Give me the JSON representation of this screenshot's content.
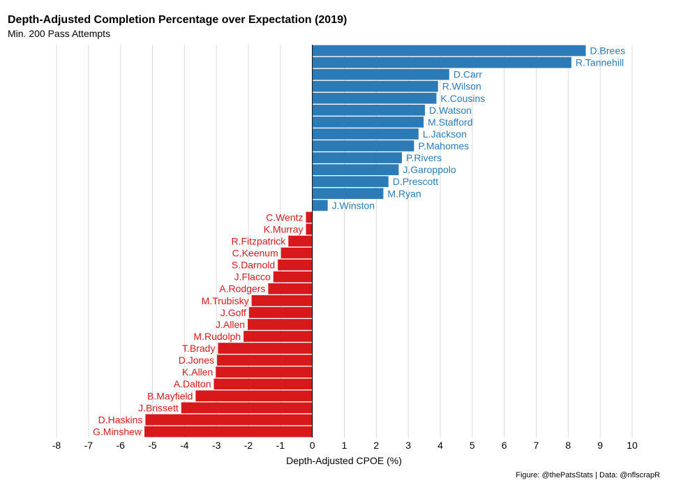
{
  "chart_data": {
    "type": "bar",
    "orientation": "horizontal",
    "title": "Depth-Adjusted Completion Percentage over Expectation (2019)",
    "subtitle": "Min. 200 Pass Attempts",
    "xlabel": "Depth-Adjusted CPOE (%)",
    "caption": "Figure: @thePatsStats | Data: @nflscrapR",
    "xlim": [
      -8,
      10
    ],
    "xticks": [
      "-8",
      "-7",
      "-6",
      "-5",
      "-4",
      "-3",
      "-2",
      "-1",
      "0",
      "1",
      "2",
      "3",
      "4",
      "5",
      "6",
      "7",
      "8",
      "9",
      "10"
    ],
    "grid": true,
    "colors": {
      "positive": "#2c7bb6",
      "negative": "#d7191c"
    },
    "categories": [
      "D.Brees",
      "R.Tannehill",
      "D.Carr",
      "R.Wilson",
      "K.Cousins",
      "D.Watson",
      "M.Stafford",
      "L.Jackson",
      "P.Mahomes",
      "P.Rivers",
      "J.Garoppolo",
      "D.Prescott",
      "M.Ryan",
      "J.Winston",
      "C.Wentz",
      "K.Murray",
      "R.Fitzpatrick",
      "C.Keenum",
      "S.Darnold",
      "J.Flacco",
      "A.Rodgers",
      "M.Trubisky",
      "J.Goff",
      "J.Allen",
      "M.Rudolph",
      "T.Brady",
      "D.Jones",
      "K.Allen",
      "A.Dalton",
      "B.Mayfield",
      "J.Brissett",
      "D.Haskins",
      "G.Minshew"
    ],
    "values": [
      8.55,
      8.1,
      4.28,
      3.93,
      3.88,
      3.52,
      3.48,
      3.32,
      3.18,
      2.8,
      2.7,
      2.38,
      2.22,
      0.48,
      -0.2,
      -0.2,
      -0.75,
      -0.98,
      -1.08,
      -1.22,
      -1.38,
      -1.9,
      -1.98,
      -2.02,
      -2.15,
      -2.95,
      -2.98,
      -3.02,
      -3.08,
      -3.65,
      -4.1,
      -5.22,
      -5.25
    ]
  }
}
